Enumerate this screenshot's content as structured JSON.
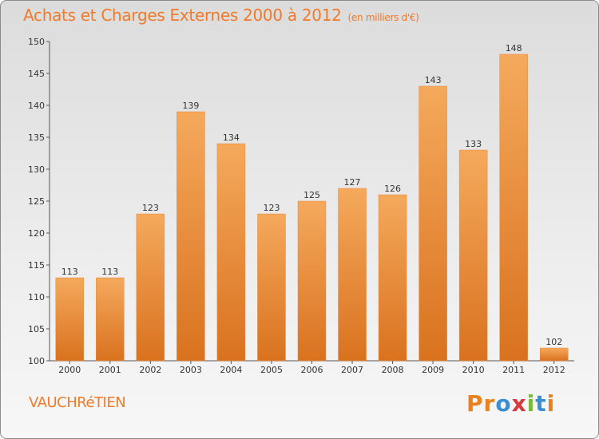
{
  "header": {
    "title": "Achats et Charges Externes 2000 à 2012",
    "subtitle": "(en milliers d'€)"
  },
  "footer": {
    "location": "VAUCHRéTIEN",
    "logo_text": "Proxiti"
  },
  "colors": {
    "accent": "#f07a2a",
    "bar_light": "#f5a95c",
    "bar_dark": "#d9721f",
    "logo_letters": [
      "#e8811f",
      "#e8811f",
      "#3a8fd0",
      "#d63a3a",
      "#7bb93a",
      "#3a8fd0",
      "#e8811f"
    ]
  },
  "chart_data": {
    "type": "bar",
    "categories": [
      "2000",
      "2001",
      "2002",
      "2003",
      "2004",
      "2005",
      "2006",
      "2007",
      "2008",
      "2009",
      "2010",
      "2011",
      "2012"
    ],
    "values": [
      113,
      113,
      123,
      139,
      134,
      123,
      125,
      127,
      126,
      143,
      133,
      148,
      102
    ],
    "ylim": [
      100,
      150
    ],
    "yticks": [
      100,
      105,
      110,
      115,
      120,
      125,
      130,
      135,
      140,
      145,
      150
    ],
    "grid": false
  }
}
